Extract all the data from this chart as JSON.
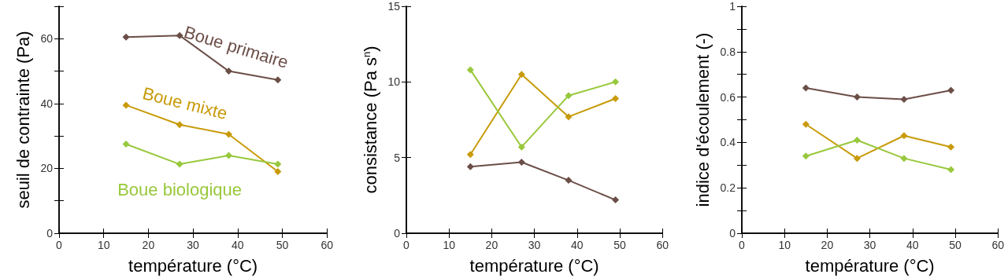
{
  "chart_data": [
    {
      "type": "line",
      "xlabel": "température (°C)",
      "ylabel": "seuil de contrainte (Pa)",
      "x": [
        15,
        27,
        38,
        49
      ],
      "xlim": [
        0,
        60
      ],
      "xticks": [
        0,
        10,
        20,
        30,
        40,
        50,
        60
      ],
      "ylim": [
        0,
        70
      ],
      "yticks": [
        0,
        {
          "value": 10,
          "label": null
        },
        20,
        {
          "value": 30,
          "label": null
        },
        40,
        {
          "value": 50,
          "label": null
        },
        60,
        {
          "value": 70,
          "label": null
        }
      ],
      "marker": "diamond",
      "line_style": "solid",
      "grid": false,
      "legend": false,
      "series": [
        {
          "name": "Boue primaire",
          "color": "#6b4e47",
          "values": [
            60.5,
            61,
            50,
            47.3
          ]
        },
        {
          "name": "Boue mixte",
          "color": "#c89b0a",
          "values": [
            39.5,
            33.5,
            30.5,
            19
          ]
        },
        {
          "name": "Boue biologique",
          "color": "#98c83c",
          "values": [
            27.5,
            21.3,
            24,
            21.3
          ]
        }
      ]
    },
    {
      "type": "line",
      "xlabel": "température (°C)",
      "ylabel": "consistance (Pa s$^{n}$)",
      "x": [
        15,
        27,
        38,
        49
      ],
      "xlim": [
        0,
        60
      ],
      "xticks": [
        0,
        10,
        20,
        30,
        40,
        50,
        60
      ],
      "ylim": [
        0,
        15
      ],
      "yticks": [
        0,
        5,
        10,
        15
      ],
      "marker": "diamond",
      "line_style": "solid",
      "grid": false,
      "legend": false,
      "series": [
        {
          "color": "#6b4e47",
          "values": [
            4.4,
            4.7,
            3.5,
            2.2
          ]
        },
        {
          "color": "#c89b0a",
          "values": [
            5.2,
            10.5,
            7.7,
            8.9
          ]
        },
        {
          "color": "#98c83c",
          "values": [
            10.8,
            5.7,
            9.1,
            10
          ]
        }
      ]
    },
    {
      "type": "line",
      "xlabel": "température (°C)",
      "ylabel": "indice d'écoulement (-)",
      "x": [
        15,
        27,
        38,
        49
      ],
      "xlim": [
        0,
        60
      ],
      "xticks": [
        0,
        10,
        20,
        30,
        40,
        50,
        60
      ],
      "ylim": [
        0,
        1
      ],
      "yticks": [
        0,
        {
          "value": 0.1,
          "label": null
        },
        0.2,
        {
          "value": 0.3,
          "label": null
        },
        0.4,
        {
          "value": 0.5,
          "label": null
        },
        0.6,
        {
          "value": 0.7,
          "label": null
        },
        0.8,
        {
          "value": 0.9,
          "label": null
        },
        1
      ],
      "marker": "diamond",
      "line_style": "solid",
      "grid": false,
      "legend": false,
      "series": [
        {
          "color": "#6b4e47",
          "values": [
            0.64,
            0.6,
            0.59,
            0.63
          ]
        },
        {
          "color": "#c89b0a",
          "values": [
            0.48,
            0.33,
            0.43,
            0.38
          ]
        },
        {
          "color": "#98c83c",
          "values": [
            0.34,
            0.41,
            0.33,
            0.28
          ]
        }
      ]
    }
  ]
}
